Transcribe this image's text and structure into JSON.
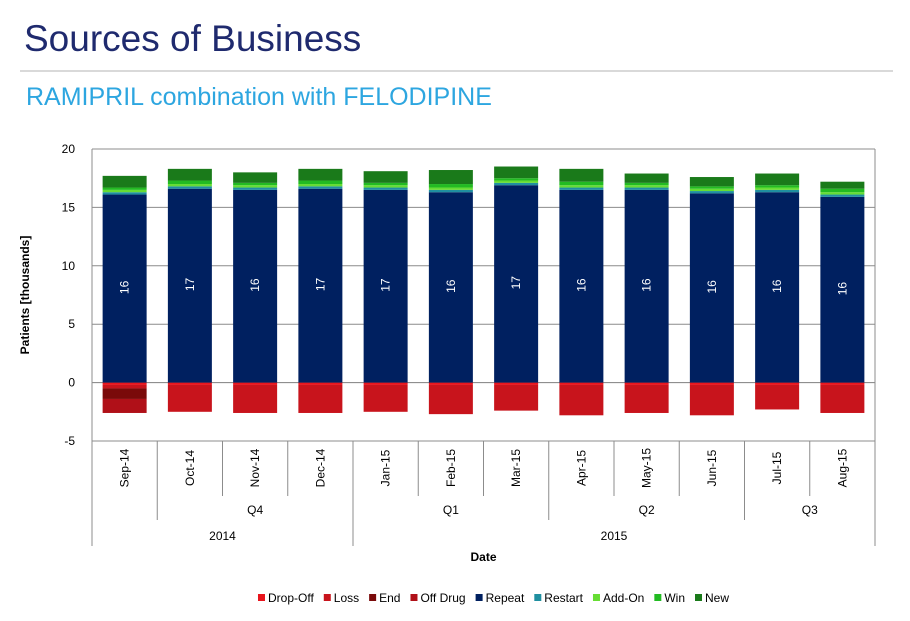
{
  "slide": {
    "title": "Sources of Business",
    "subtitle": "RAMIPRIL combination with FELODIPINE"
  },
  "chart_data": {
    "type": "bar",
    "stacked": true,
    "xlabel": "Date",
    "ylabel": "Patients [thousands]",
    "ylim": [
      -5,
      20
    ],
    "yticks": [
      -5,
      0,
      5,
      10,
      15,
      20
    ],
    "grid": true,
    "legend_position": "bottom",
    "categories": [
      "Sep-14",
      "Oct-14",
      "Nov-14",
      "Dec-14",
      "Jan-15",
      "Feb-15",
      "Mar-15",
      "Apr-15",
      "May-15",
      "Jun-15",
      "Jul-15",
      "Aug-15"
    ],
    "quarter_groups": [
      {
        "label": "",
        "count": 1
      },
      {
        "label": "Q4",
        "count": 3
      },
      {
        "label": "Q1",
        "count": 3
      },
      {
        "label": "Q2",
        "count": 3
      },
      {
        "label": "Q3",
        "count": 2
      }
    ],
    "year_groups": [
      {
        "label": "2014",
        "count": 4
      },
      {
        "label": "2015",
        "count": 8
      }
    ],
    "repeat_labels": [
      "16",
      "17",
      "16",
      "17",
      "17",
      "16",
      "17",
      "16",
      "16",
      "16",
      "16",
      "16"
    ],
    "series": [
      {
        "name": "Drop-Off",
        "color": "#e8141c",
        "values": [
          -0.2,
          -0.2,
          -0.2,
          -0.2,
          -0.2,
          -0.2,
          -0.2,
          -0.2,
          -0.2,
          -0.2,
          -0.2,
          -0.2
        ]
      },
      {
        "name": "Loss",
        "color": "#c8141c",
        "values": [
          -0.3,
          -2.3,
          -2.4,
          -2.4,
          -2.3,
          -2.5,
          -2.2,
          -2.6,
          -2.4,
          -2.6,
          -2.1,
          -2.4
        ]
      },
      {
        "name": "End",
        "color": "#7a0a0a",
        "values": [
          -0.9,
          0,
          0,
          0,
          0,
          0,
          0,
          0,
          0,
          0,
          0,
          0
        ]
      },
      {
        "name": "Off Drug",
        "color": "#b01018",
        "values": [
          -1.2,
          0,
          0,
          0,
          0,
          0,
          0,
          0,
          0,
          0,
          0,
          0
        ]
      },
      {
        "name": "Repeat",
        "color": "#002060",
        "values": [
          16.1,
          16.6,
          16.5,
          16.6,
          16.5,
          16.3,
          16.9,
          16.5,
          16.5,
          16.2,
          16.3,
          15.9
        ]
      },
      {
        "name": "Restart",
        "color": "#1f8fa0",
        "values": [
          0.2,
          0.2,
          0.2,
          0.2,
          0.2,
          0.2,
          0.2,
          0.2,
          0.2,
          0.2,
          0.2,
          0.2
        ]
      },
      {
        "name": "Add-On",
        "color": "#66dd33",
        "values": [
          0.2,
          0.2,
          0.2,
          0.2,
          0.2,
          0.2,
          0.2,
          0.2,
          0.2,
          0.2,
          0.2,
          0.2
        ]
      },
      {
        "name": "Win",
        "color": "#22bb22",
        "values": [
          0.2,
          0.3,
          0.2,
          0.3,
          0.2,
          0.3,
          0.2,
          0.3,
          0.2,
          0.2,
          0.2,
          0.3
        ]
      },
      {
        "name": "New",
        "color": "#1a7a1a",
        "values": [
          1.0,
          1.0,
          0.9,
          1.0,
          1.0,
          1.2,
          1.0,
          1.1,
          0.8,
          0.8,
          1.0,
          0.6
        ]
      }
    ],
    "legend_order": [
      "Drop-Off",
      "Loss",
      "End",
      "Off Drug",
      "Repeat",
      "Restart",
      "Add-On",
      "Win",
      "New"
    ]
  }
}
